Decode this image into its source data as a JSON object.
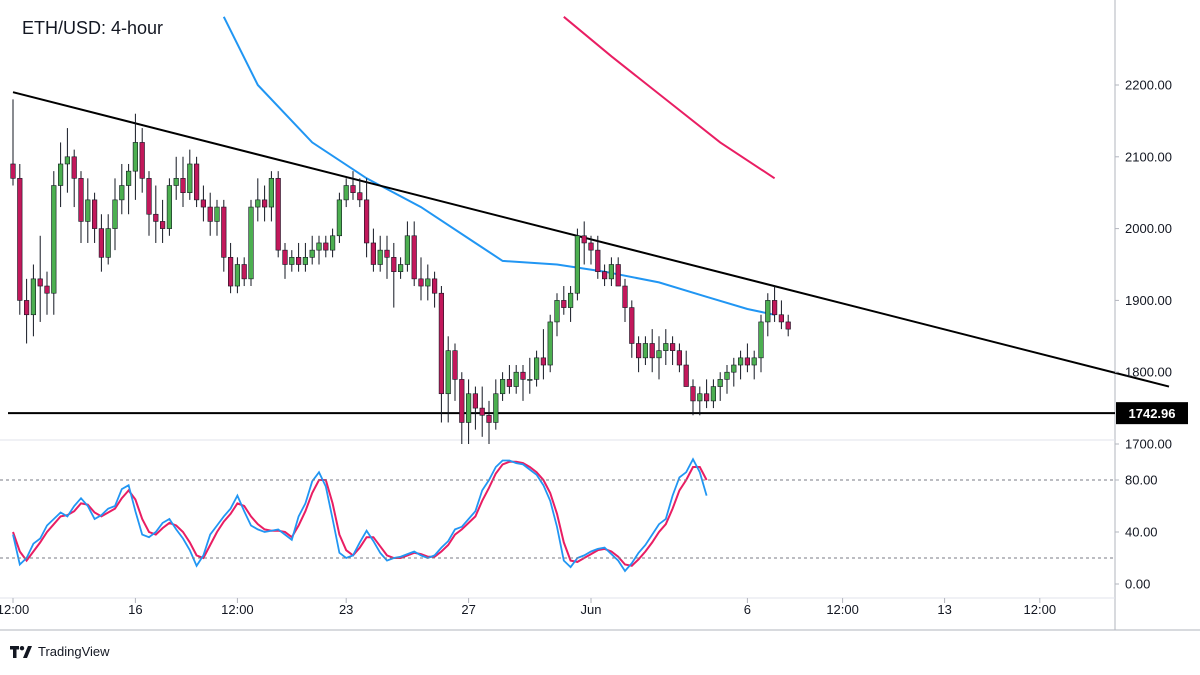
{
  "chart_data": {
    "type": "candlestick",
    "title": "ETH/USD: 4-hour",
    "price_axis": {
      "ticks": [
        1700,
        1800,
        1900,
        2000,
        2100,
        2200
      ],
      "tick_labels": [
        "1700.00",
        "1800.00",
        "1900.00",
        "2000.00",
        "2100.00",
        "2200.00"
      ],
      "range": [
        1670,
        2260
      ]
    },
    "time_axis": {
      "ticks": [
        {
          "label": "12:00",
          "bar": 0
        },
        {
          "label": "16",
          "bar": 18
        },
        {
          "label": "12:00",
          "bar": 33
        },
        {
          "label": "23",
          "bar": 49
        },
        {
          "label": "27",
          "bar": 67
        },
        {
          "label": "Jun",
          "bar": 85
        },
        {
          "label": "6",
          "bar": 108
        },
        {
          "label": "12:00",
          "bar": 122
        },
        {
          "label": "13",
          "bar": 137
        },
        {
          "label": "12:00",
          "bar": 151
        }
      ]
    },
    "candles": [
      [
        2090,
        2180,
        2060,
        2070
      ],
      [
        2070,
        2090,
        1880,
        1900
      ],
      [
        1900,
        1930,
        1840,
        1880
      ],
      [
        1880,
        1950,
        1850,
        1930
      ],
      [
        1930,
        1990,
        1870,
        1920
      ],
      [
        1920,
        1940,
        1880,
        1910
      ],
      [
        1910,
        2080,
        1880,
        2060
      ],
      [
        2060,
        2120,
        2030,
        2090
      ],
      [
        2090,
        2140,
        2050,
        2100
      ],
      [
        2100,
        2110,
        2030,
        2070
      ],
      [
        2070,
        2080,
        1980,
        2010
      ],
      [
        2010,
        2070,
        1980,
        2040
      ],
      [
        2040,
        2050,
        1980,
        2000
      ],
      [
        2000,
        2020,
        1940,
        1960
      ],
      [
        1960,
        2020,
        1950,
        2000
      ],
      [
        2000,
        2070,
        1970,
        2040
      ],
      [
        2040,
        2090,
        2020,
        2060
      ],
      [
        2060,
        2090,
        2020,
        2080
      ],
      [
        2080,
        2160,
        2040,
        2120
      ],
      [
        2120,
        2140,
        2050,
        2070
      ],
      [
        2070,
        2080,
        1990,
        2020
      ],
      [
        2020,
        2060,
        1980,
        2010
      ],
      [
        2010,
        2040,
        1980,
        2000
      ],
      [
        2000,
        2070,
        1990,
        2060
      ],
      [
        2060,
        2100,
        2040,
        2070
      ],
      [
        2070,
        2100,
        2030,
        2050
      ],
      [
        2050,
        2110,
        2040,
        2090
      ],
      [
        2090,
        2100,
        2030,
        2040
      ],
      [
        2040,
        2060,
        2010,
        2030
      ],
      [
        2030,
        2050,
        1990,
        2010
      ],
      [
        2010,
        2040,
        1990,
        2030
      ],
      [
        2030,
        2040,
        1940,
        1960
      ],
      [
        1960,
        1980,
        1910,
        1920
      ],
      [
        1920,
        1960,
        1910,
        1950
      ],
      [
        1950,
        1960,
        1920,
        1930
      ],
      [
        1930,
        2040,
        1920,
        2030
      ],
      [
        2030,
        2070,
        2010,
        2040
      ],
      [
        2040,
        2060,
        2010,
        2030
      ],
      [
        2030,
        2080,
        2010,
        2070
      ],
      [
        2070,
        2080,
        1960,
        1970
      ],
      [
        1970,
        1980,
        1930,
        1950
      ],
      [
        1950,
        1970,
        1940,
        1960
      ],
      [
        1960,
        1980,
        1940,
        1950
      ],
      [
        1950,
        1980,
        1940,
        1960
      ],
      [
        1960,
        1990,
        1950,
        1970
      ],
      [
        1970,
        1990,
        1950,
        1980
      ],
      [
        1980,
        1990,
        1960,
        1970
      ],
      [
        1970,
        2000,
        1960,
        1990
      ],
      [
        1990,
        2050,
        1980,
        2040
      ],
      [
        2040,
        2070,
        2030,
        2060
      ],
      [
        2060,
        2080,
        2040,
        2050
      ],
      [
        2050,
        2070,
        2030,
        2040
      ],
      [
        2040,
        2070,
        1960,
        1980
      ],
      [
        1980,
        2000,
        1940,
        1950
      ],
      [
        1950,
        1990,
        1940,
        1970
      ],
      [
        1970,
        1990,
        1930,
        1960
      ],
      [
        1960,
        1980,
        1890,
        1940
      ],
      [
        1940,
        1960,
        1930,
        1950
      ],
      [
        1950,
        2010,
        1940,
        1990
      ],
      [
        1990,
        2010,
        1920,
        1930
      ],
      [
        1930,
        1960,
        1900,
        1920
      ],
      [
        1920,
        1950,
        1900,
        1930
      ],
      [
        1930,
        1940,
        1890,
        1910
      ],
      [
        1910,
        1920,
        1730,
        1770
      ],
      [
        1770,
        1850,
        1730,
        1830
      ],
      [
        1830,
        1840,
        1760,
        1790
      ],
      [
        1790,
        1800,
        1700,
        1730
      ],
      [
        1730,
        1790,
        1700,
        1770
      ],
      [
        1770,
        1780,
        1720,
        1750
      ],
      [
        1750,
        1780,
        1710,
        1740
      ],
      [
        1740,
        1760,
        1700,
        1730
      ],
      [
        1730,
        1790,
        1720,
        1770
      ],
      [
        1770,
        1800,
        1760,
        1790
      ],
      [
        1790,
        1810,
        1770,
        1780
      ],
      [
        1780,
        1810,
        1770,
        1800
      ],
      [
        1800,
        1810,
        1760,
        1790
      ],
      [
        1790,
        1820,
        1770,
        1790
      ],
      [
        1790,
        1830,
        1780,
        1820
      ],
      [
        1820,
        1860,
        1790,
        1810
      ],
      [
        1810,
        1880,
        1800,
        1870
      ],
      [
        1870,
        1910,
        1850,
        1900
      ],
      [
        1900,
        1920,
        1880,
        1890
      ],
      [
        1890,
        1920,
        1870,
        1910
      ],
      [
        1910,
        2000,
        1900,
        1990
      ],
      [
        1990,
        2010,
        1950,
        1980
      ],
      [
        1980,
        1990,
        1950,
        1970
      ],
      [
        1970,
        1990,
        1930,
        1940
      ],
      [
        1940,
        1950,
        1920,
        1930
      ],
      [
        1930,
        1960,
        1920,
        1950
      ],
      [
        1950,
        1960,
        1920,
        1920
      ],
      [
        1920,
        1930,
        1870,
        1890
      ],
      [
        1890,
        1900,
        1820,
        1840
      ],
      [
        1840,
        1850,
        1800,
        1820
      ],
      [
        1820,
        1850,
        1810,
        1840
      ],
      [
        1840,
        1860,
        1800,
        1820
      ],
      [
        1820,
        1850,
        1790,
        1830
      ],
      [
        1830,
        1860,
        1810,
        1840
      ],
      [
        1840,
        1850,
        1810,
        1830
      ],
      [
        1830,
        1840,
        1800,
        1810
      ],
      [
        1810,
        1830,
        1780,
        1780
      ],
      [
        1780,
        1790,
        1740,
        1760
      ],
      [
        1760,
        1780,
        1740,
        1770
      ],
      [
        1770,
        1790,
        1750,
        1760
      ],
      [
        1760,
        1790,
        1750,
        1780
      ],
      [
        1780,
        1800,
        1760,
        1790
      ],
      [
        1790,
        1810,
        1770,
        1800
      ],
      [
        1800,
        1820,
        1780,
        1810
      ],
      [
        1810,
        1830,
        1790,
        1820
      ],
      [
        1820,
        1840,
        1800,
        1810
      ],
      [
        1810,
        1830,
        1790,
        1820
      ],
      [
        1820,
        1880,
        1800,
        1870
      ],
      [
        1870,
        1910,
        1850,
        1900
      ],
      [
        1900,
        1920,
        1870,
        1880
      ],
      [
        1880,
        1900,
        1860,
        1870
      ],
      [
        1870,
        1880,
        1850,
        1860
      ]
    ],
    "moving_averages": [
      {
        "color": "#2196f3",
        "points": [
          [
            31,
            2295
          ],
          [
            36,
            2200
          ],
          [
            44,
            2120
          ],
          [
            52,
            2070
          ],
          [
            60,
            2030
          ],
          [
            68,
            1980
          ],
          [
            72,
            1955
          ],
          [
            80,
            1950
          ],
          [
            87,
            1940
          ],
          [
            95,
            1925
          ],
          [
            102,
            1905
          ],
          [
            108,
            1888
          ],
          [
            112,
            1880
          ]
        ]
      },
      {
        "color": "#e91e63",
        "points": [
          [
            81,
            2295
          ],
          [
            88,
            2240
          ],
          [
            96,
            2180
          ],
          [
            104,
            2120
          ],
          [
            112,
            2070
          ]
        ]
      }
    ],
    "trendline": {
      "points": [
        [
          0,
          2190
        ],
        [
          170,
          1780
        ]
      ],
      "color": "#000000"
    },
    "support": {
      "price": 1742.96,
      "label": "1742.96",
      "color": "#000000"
    },
    "oscillator": {
      "ticks": [
        0,
        40,
        80
      ],
      "tick_labels": [
        "0.00",
        "40.00",
        "80.00"
      ],
      "levels": [
        20,
        80
      ],
      "range": [
        -3,
        105
      ],
      "k": [
        38,
        15,
        20,
        31,
        35,
        45,
        50,
        55,
        52,
        60,
        66,
        60,
        50,
        53,
        58,
        60,
        73,
        76,
        56,
        38,
        36,
        40,
        47,
        50,
        42,
        35,
        26,
        14,
        22,
        38,
        45,
        52,
        58,
        68,
        56,
        45,
        42,
        40,
        41,
        42,
        38,
        34,
        52,
        62,
        79,
        86,
        75,
        50,
        24,
        20,
        22,
        32,
        41,
        33,
        24,
        18,
        20,
        21,
        23,
        25,
        22,
        20,
        22,
        28,
        33,
        42,
        44,
        50,
        56,
        72,
        80,
        90,
        95,
        95,
        93,
        92,
        88,
        84,
        76,
        64,
        44,
        18,
        13,
        20,
        22,
        25,
        27,
        28,
        23,
        18,
        10,
        16,
        24,
        30,
        38,
        46,
        50,
        68,
        82,
        86,
        96,
        86,
        68
      ],
      "d": [
        40,
        25,
        18,
        25,
        32,
        40,
        46,
        52,
        53,
        56,
        62,
        61,
        55,
        52,
        55,
        58,
        66,
        72,
        65,
        50,
        40,
        38,
        43,
        47,
        45,
        40,
        32,
        22,
        20,
        30,
        40,
        48,
        54,
        62,
        60,
        52,
        46,
        42,
        41,
        41,
        40,
        36,
        45,
        56,
        70,
        80,
        80,
        62,
        38,
        26,
        22,
        28,
        36,
        36,
        29,
        22,
        20,
        20,
        22,
        24,
        23,
        21,
        21,
        25,
        30,
        38,
        42,
        47,
        52,
        64,
        74,
        85,
        92,
        94,
        94,
        93,
        90,
        86,
        80,
        70,
        54,
        32,
        18,
        17,
        20,
        23,
        26,
        27,
        25,
        21,
        15,
        14,
        19,
        25,
        32,
        40,
        46,
        58,
        72,
        80,
        90,
        90,
        80
      ]
    }
  },
  "watermark": {
    "text": "TradingView"
  }
}
